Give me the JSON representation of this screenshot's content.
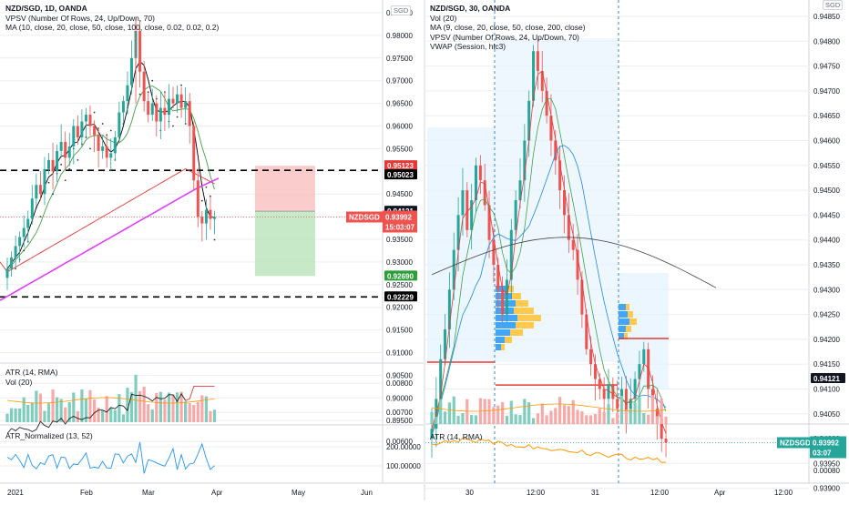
{
  "colors": {
    "up": "#26a69a",
    "down": "#ef5350",
    "grid": "#eeeeee",
    "vpsv_up": "#2962ff",
    "vpsv_down": "#f5a623",
    "poc": "#e53935",
    "ma_black": "#000000",
    "ma_red": "#e53935",
    "ma_green": "#43a047",
    "ma_blue": "#1e88e5",
    "ma_magenta": "#e040fb",
    "vwap": "#424242",
    "atr_norm": "#2196f3",
    "atr_orange": "#ff9800",
    "crosshair": "#3d85c6"
  },
  "left": {
    "legend": [
      "NZD/SGD, 1D, OANDA",
      "VPSV (Number Of Rows, 24, Up/Down, 70)",
      "MA (10, close, 20, close, 50, close, 100, close, 0.02, 0.02, 0.2)"
    ],
    "currency": "SGD",
    "price_ticks": [
      "0.98500",
      "0.98000",
      "0.97500",
      "0.97000",
      "0.96500",
      "0.96000",
      "0.95500",
      "0.95000",
      "0.94500",
      "0.94000",
      "0.93500",
      "0.93000",
      "0.92500",
      "0.92000",
      "0.91500",
      "0.91000",
      "0.90500",
      "0.90000",
      "0.89500"
    ],
    "tags": {
      "stop": "0.95123",
      "level_top": "0.95023",
      "target": "0.92690",
      "level_bottom": "0.92229",
      "last_dark": "0.94121",
      "symbol": "NZDSGD",
      "price": "0.93992",
      "countdown": "15:03:07"
    },
    "atr_legend": [
      "ATR (14, RMA)",
      "Vol (20)"
    ],
    "atr_ticks": [
      "0.00800",
      "0.00700",
      "0.00600"
    ],
    "norm_legend": "ATR_Normalized (13, 52)",
    "norm_ticks": [
      "200.00000",
      "100.00000"
    ],
    "date_labels": [
      "2021",
      "Feb",
      "Mar",
      "Apr",
      "May",
      "Jun"
    ]
  },
  "right": {
    "legend": [
      "NZD/SGD, 30, OANDA",
      "Vol (20)",
      "MA (9, close, 20, close, 50, close, 200, close)",
      "VPSV (Number Of Rows, 24, Up/Down, 70)",
      "VWAP (Session, hlc3)"
    ],
    "currency": "SGD",
    "price_ticks": [
      "0.94850",
      "0.94800",
      "0.94750",
      "0.94700",
      "0.94650",
      "0.94600",
      "0.94550",
      "0.94500",
      "0.94450",
      "0.94400",
      "0.94350",
      "0.94300",
      "0.94250",
      "0.94200",
      "0.94150",
      "0.94100",
      "0.94050",
      "0.94000",
      "0.93950",
      "0.93900"
    ],
    "tags": {
      "last_dark": "0.94121",
      "symbol": "NZDSGD",
      "price": "0.93992",
      "countdown": "03:07"
    },
    "atr_legend": "ATR (14, RMA)",
    "atr_tick": "0.00080",
    "date_labels": [
      "30",
      "12:00",
      "31",
      "12:00",
      "Apr",
      "12:00"
    ]
  },
  "chart_data": [
    {
      "type": "candlestick",
      "title": "NZD/SGD, 1D, OANDA",
      "ylim": [
        0.8925,
        0.987
      ],
      "x": [
        "2021-01-04",
        "2021-02-01",
        "2021-03-01",
        "2021-03-31"
      ],
      "close_series": [
        0.9285,
        0.931,
        0.9335,
        0.9355,
        0.9375,
        0.9395,
        0.944,
        0.947,
        0.945,
        0.9505,
        0.9525,
        0.95,
        0.9545,
        0.9565,
        0.953,
        0.9555,
        0.96,
        0.9575,
        0.961,
        0.9625,
        0.96,
        0.958,
        0.9545,
        0.9555,
        0.953,
        0.954,
        0.9575,
        0.963,
        0.9655,
        0.969,
        0.975,
        0.981,
        0.972,
        0.9655,
        0.9625,
        0.965,
        0.961,
        0.964,
        0.9625,
        0.966,
        0.965,
        0.967,
        0.964,
        0.9655,
        0.96,
        0.948,
        0.94,
        0.9385,
        0.9415,
        0.9395,
        0.9399
      ],
      "trade_box": {
        "entry": 0.94121,
        "stop": 0.95123,
        "target": 0.9269
      },
      "levels": [
        0.95023,
        0.92229
      ],
      "last_price": 0.93992
    },
    {
      "type": "candlestick",
      "title": "NZD/SGD, 30, OANDA",
      "ylim": [
        0.9387,
        0.9488
      ],
      "close_series": [
        0.9402,
        0.9408,
        0.9416,
        0.9422,
        0.943,
        0.9438,
        0.9445,
        0.945,
        0.9442,
        0.9448,
        0.9455,
        0.9452,
        0.9447,
        0.944,
        0.9435,
        0.943,
        0.9425,
        0.9432,
        0.9442,
        0.9448,
        0.9452,
        0.946,
        0.9468,
        0.9478,
        0.9474,
        0.947,
        0.9465,
        0.946,
        0.9456,
        0.945,
        0.9445,
        0.944,
        0.9438,
        0.9432,
        0.9425,
        0.9418,
        0.9415,
        0.9412,
        0.941,
        0.9408,
        0.9411,
        0.9408,
        0.9406,
        0.941,
        0.9405,
        0.9408,
        0.9412,
        0.9415,
        0.9418,
        0.941,
        0.9406,
        0.9404,
        0.94,
        0.93992
      ],
      "poc": 0.94108,
      "last_price": 0.93992
    }
  ]
}
